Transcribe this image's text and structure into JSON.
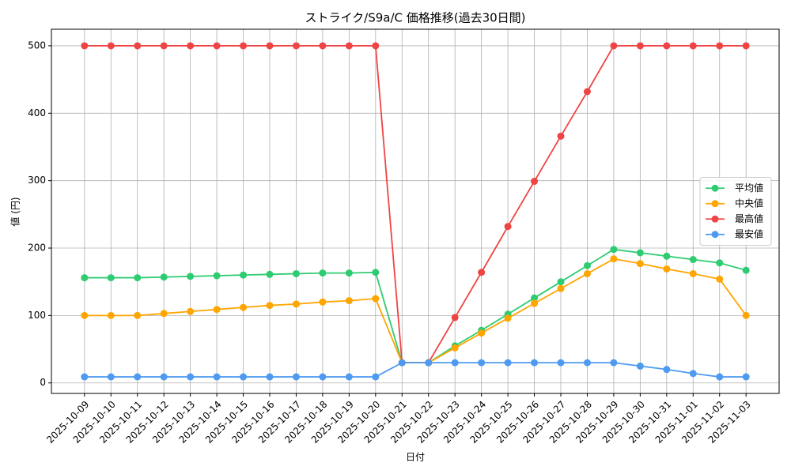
{
  "chart_data": {
    "type": "line",
    "title": "ストライク/S9a/C 価格推移(過去30日間)",
    "x_label": "日付",
    "y_label": "値 (円)",
    "categories": [
      "2025-10-09",
      "2025-10-10",
      "2025-10-11",
      "2025-10-12",
      "2025-10-13",
      "2025-10-14",
      "2025-10-15",
      "2025-10-16",
      "2025-10-17",
      "2025-10-18",
      "2025-10-19",
      "2025-10-20",
      "2025-10-21",
      "2025-10-22",
      "2025-10-23",
      "2025-10-24",
      "2025-10-25",
      "2025-10-26",
      "2025-10-27",
      "2025-10-28",
      "2025-10-29",
      "2025-10-30",
      "2025-10-31",
      "2025-11-01",
      "2025-11-02",
      "2025-11-03"
    ],
    "series": [
      {
        "name": "平均値",
        "color": "#2ecc71",
        "values": [
          156,
          156,
          156,
          157,
          158,
          159,
          160,
          161,
          162,
          163,
          163,
          164,
          30,
          30,
          55,
          78,
          102,
          126,
          150,
          174,
          198,
          193,
          188,
          183,
          178,
          167
        ]
      },
      {
        "name": "中央値",
        "color": "#ffa500",
        "values": [
          100,
          100,
          100,
          103,
          106,
          109,
          112,
          115,
          117,
          120,
          122,
          125,
          30,
          30,
          52,
          74,
          96,
          118,
          140,
          162,
          184,
          177,
          169,
          162,
          154,
          100
        ]
      },
      {
        "name": "最高値",
        "color": "#ef4444",
        "values": [
          500,
          500,
          500,
          500,
          500,
          500,
          500,
          500,
          500,
          500,
          500,
          500,
          30,
          30,
          97,
          164,
          232,
          299,
          366,
          432,
          500,
          500,
          500,
          500,
          500,
          500
        ]
      },
      {
        "name": "最安値",
        "color": "#4e9af1",
        "values": [
          9,
          9,
          9,
          9,
          9,
          9,
          9,
          9,
          9,
          9,
          9,
          9,
          30,
          30,
          30,
          30,
          30,
          30,
          30,
          30,
          30,
          25,
          20,
          14,
          9,
          9
        ]
      }
    ],
    "ylim": [
      -15.55,
      524.55
    ],
    "yticks": [
      0,
      100,
      200,
      300,
      400,
      500
    ],
    "grid": true,
    "legend": "center right"
  }
}
